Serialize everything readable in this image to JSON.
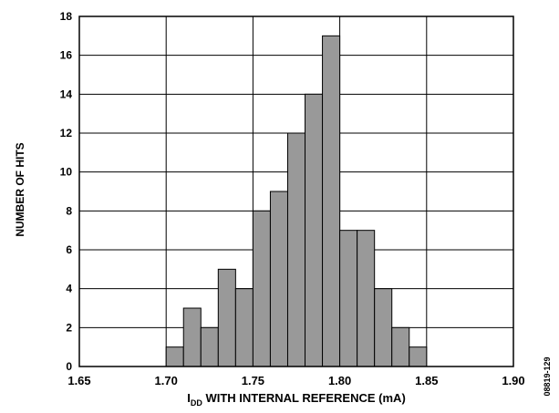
{
  "chart_data": {
    "type": "bar",
    "title": "",
    "xlabel_main": "I",
    "xlabel_sub": "DD",
    "xlabel_rest": " WITH INTERNAL REFERENCE (mA)",
    "ylabel": "NUMBER OF HITS",
    "figure_id": "08819-129",
    "xlim": [
      1.65,
      1.9
    ],
    "ylim": [
      0,
      18
    ],
    "xticks": [
      "1.65",
      "1.70",
      "1.75",
      "1.80",
      "1.85",
      "1.90"
    ],
    "yticks": [
      "0",
      "2",
      "4",
      "6",
      "8",
      "10",
      "12",
      "14",
      "16",
      "18"
    ],
    "grid": true,
    "bin_width": 0.01,
    "bar_color": "#999999",
    "bins": [
      {
        "x": 1.705,
        "count": 1
      },
      {
        "x": 1.715,
        "count": 3
      },
      {
        "x": 1.725,
        "count": 2
      },
      {
        "x": 1.735,
        "count": 5
      },
      {
        "x": 1.745,
        "count": 4
      },
      {
        "x": 1.755,
        "count": 8
      },
      {
        "x": 1.765,
        "count": 9
      },
      {
        "x": 1.775,
        "count": 12
      },
      {
        "x": 1.785,
        "count": 14
      },
      {
        "x": 1.795,
        "count": 17
      },
      {
        "x": 1.805,
        "count": 7
      },
      {
        "x": 1.815,
        "count": 7
      },
      {
        "x": 1.825,
        "count": 4
      },
      {
        "x": 1.835,
        "count": 2
      },
      {
        "x": 1.845,
        "count": 1
      }
    ]
  }
}
